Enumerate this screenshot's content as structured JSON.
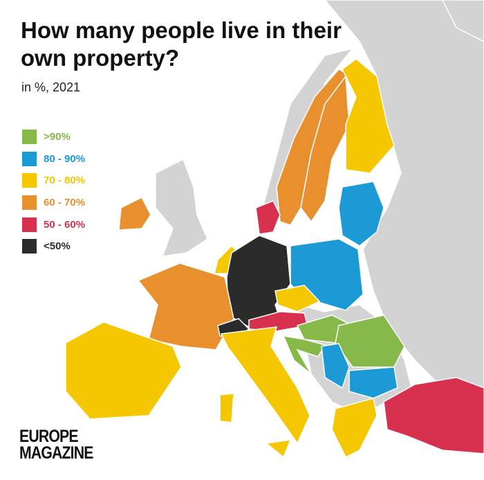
{
  "header": {
    "title": "How many people live in their own property?",
    "subtitle": "in %, 2021"
  },
  "legend": [
    {
      "label": ">90%",
      "color": "#86b84a"
    },
    {
      "label": "80 - 90%",
      "color": "#1b9ad6"
    },
    {
      "label": "70 - 80%",
      "color": "#f5c700"
    },
    {
      "label": "60 - 70%",
      "color": "#e8902e"
    },
    {
      "label": "50 - 60%",
      "color": "#d8304f"
    },
    {
      "label": "<50%",
      "color": "#2b2b2b"
    }
  ],
  "logo": [
    "EUROPE",
    "MAGAZINE"
  ]
}
